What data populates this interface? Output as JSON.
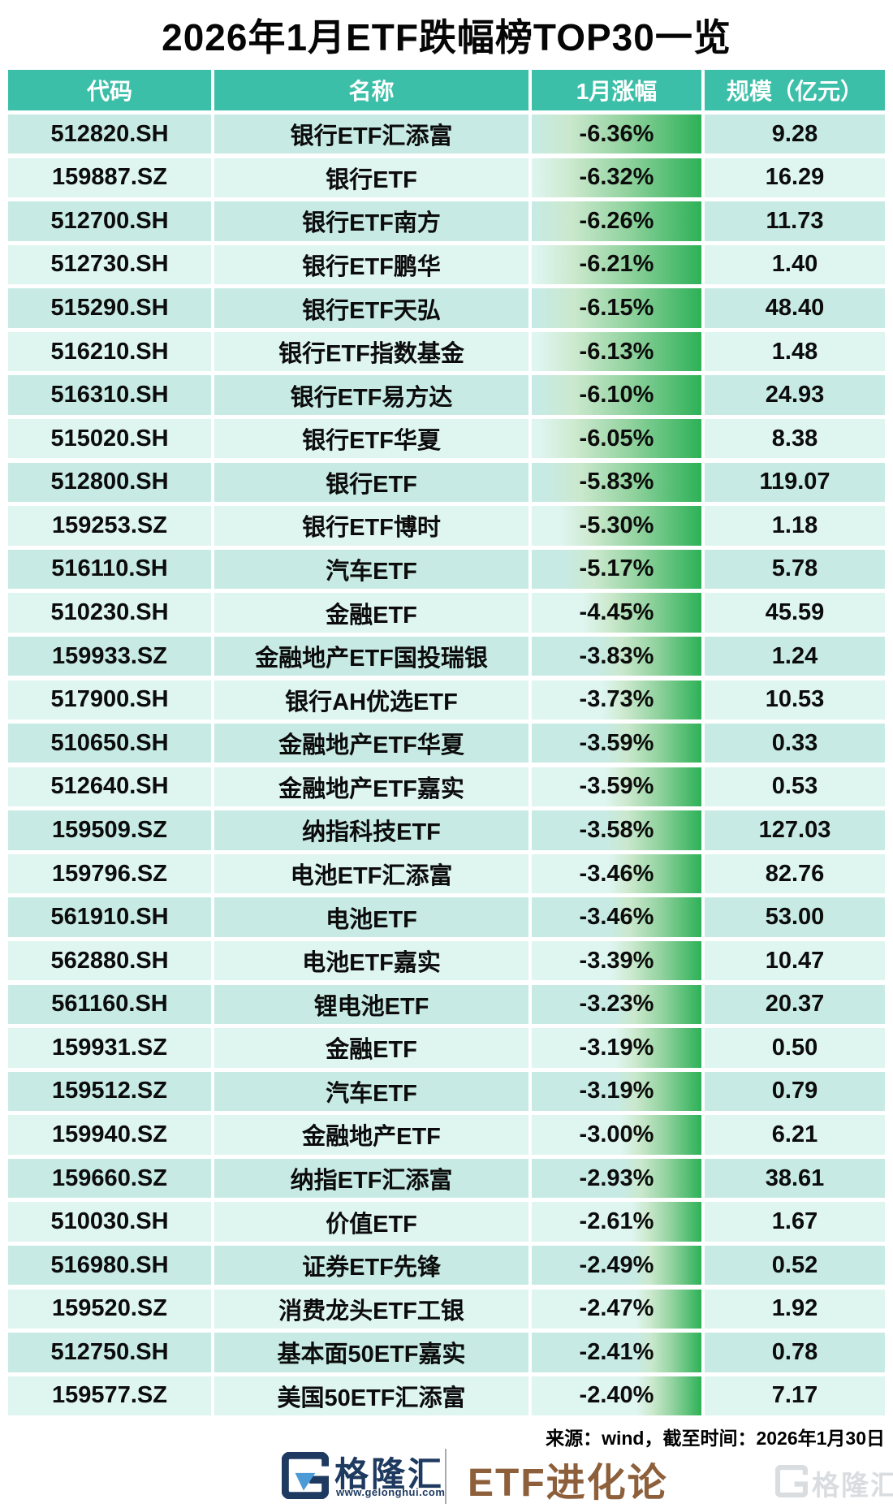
{
  "title": "2026年1月ETF跌幅榜TOP30一览",
  "chart_data": {
    "type": "table",
    "title": "2026年1月ETF跌幅榜TOP30一览",
    "columns": [
      "代码",
      "名称",
      "1月涨幅",
      "规模（亿元）"
    ],
    "bar_encoding": {
      "column": "1月涨幅",
      "max_abs_pct": 6.36,
      "bar_color_start": "#dff2df",
      "bar_color_end": "#2db157"
    },
    "rows": [
      {
        "code": "512820.SH",
        "name": "银行ETF汇添富",
        "change_pct": -6.36,
        "change_label": "-6.36%",
        "scale": "9.28"
      },
      {
        "code": "159887.SZ",
        "name": "银行ETF",
        "change_pct": -6.32,
        "change_label": "-6.32%",
        "scale": "16.29"
      },
      {
        "code": "512700.SH",
        "name": "银行ETF南方",
        "change_pct": -6.26,
        "change_label": "-6.26%",
        "scale": "11.73"
      },
      {
        "code": "512730.SH",
        "name": "银行ETF鹏华",
        "change_pct": -6.21,
        "change_label": "-6.21%",
        "scale": "1.40"
      },
      {
        "code": "515290.SH",
        "name": "银行ETF天弘",
        "change_pct": -6.15,
        "change_label": "-6.15%",
        "scale": "48.40"
      },
      {
        "code": "516210.SH",
        "name": "银行ETF指数基金",
        "change_pct": -6.13,
        "change_label": "-6.13%",
        "scale": "1.48"
      },
      {
        "code": "516310.SH",
        "name": "银行ETF易方达",
        "change_pct": -6.1,
        "change_label": "-6.10%",
        "scale": "24.93"
      },
      {
        "code": "515020.SH",
        "name": "银行ETF华夏",
        "change_pct": -6.05,
        "change_label": "-6.05%",
        "scale": "8.38"
      },
      {
        "code": "512800.SH",
        "name": "银行ETF",
        "change_pct": -5.83,
        "change_label": "-5.83%",
        "scale": "119.07"
      },
      {
        "code": "159253.SZ",
        "name": "银行ETF博时",
        "change_pct": -5.3,
        "change_label": "-5.30%",
        "scale": "1.18"
      },
      {
        "code": "516110.SH",
        "name": "汽车ETF",
        "change_pct": -5.17,
        "change_label": "-5.17%",
        "scale": "5.78"
      },
      {
        "code": "510230.SH",
        "name": "金融ETF",
        "change_pct": -4.45,
        "change_label": "-4.45%",
        "scale": "45.59"
      },
      {
        "code": "159933.SZ",
        "name": "金融地产ETF国投瑞银",
        "change_pct": -3.83,
        "change_label": "-3.83%",
        "scale": "1.24"
      },
      {
        "code": "517900.SH",
        "name": "银行AH优选ETF",
        "change_pct": -3.73,
        "change_label": "-3.73%",
        "scale": "10.53"
      },
      {
        "code": "510650.SH",
        "name": "金融地产ETF华夏",
        "change_pct": -3.59,
        "change_label": "-3.59%",
        "scale": "0.33"
      },
      {
        "code": "512640.SH",
        "name": "金融地产ETF嘉实",
        "change_pct": -3.59,
        "change_label": "-3.59%",
        "scale": "0.53"
      },
      {
        "code": "159509.SZ",
        "name": "纳指科技ETF",
        "change_pct": -3.58,
        "change_label": "-3.58%",
        "scale": "127.03"
      },
      {
        "code": "159796.SZ",
        "name": "电池ETF汇添富",
        "change_pct": -3.46,
        "change_label": "-3.46%",
        "scale": "82.76"
      },
      {
        "code": "561910.SH",
        "name": "电池ETF",
        "change_pct": -3.46,
        "change_label": "-3.46%",
        "scale": "53.00"
      },
      {
        "code": "562880.SH",
        "name": "电池ETF嘉实",
        "change_pct": -3.39,
        "change_label": "-3.39%",
        "scale": "10.47"
      },
      {
        "code": "561160.SH",
        "name": "锂电池ETF",
        "change_pct": -3.23,
        "change_label": "-3.23%",
        "scale": "20.37"
      },
      {
        "code": "159931.SZ",
        "name": "金融ETF",
        "change_pct": -3.19,
        "change_label": "-3.19%",
        "scale": "0.50"
      },
      {
        "code": "159512.SZ",
        "name": "汽车ETF",
        "change_pct": -3.19,
        "change_label": "-3.19%",
        "scale": "0.79"
      },
      {
        "code": "159940.SZ",
        "name": "金融地产ETF",
        "change_pct": -3.0,
        "change_label": "-3.00%",
        "scale": "6.21"
      },
      {
        "code": "159660.SZ",
        "name": "纳指ETF汇添富",
        "change_pct": -2.93,
        "change_label": "-2.93%",
        "scale": "38.61"
      },
      {
        "code": "510030.SH",
        "name": "价值ETF",
        "change_pct": -2.61,
        "change_label": "-2.61%",
        "scale": "1.67"
      },
      {
        "code": "516980.SH",
        "name": "证券ETF先锋",
        "change_pct": -2.49,
        "change_label": "-2.49%",
        "scale": "0.52"
      },
      {
        "code": "159520.SZ",
        "name": "消费龙头ETF工银",
        "change_pct": -2.47,
        "change_label": "-2.47%",
        "scale": "1.92"
      },
      {
        "code": "512750.SH",
        "name": "基本面50ETF嘉实",
        "change_pct": -2.41,
        "change_label": "-2.41%",
        "scale": "0.78"
      },
      {
        "code": "159577.SZ",
        "name": "美国50ETF汇添富",
        "change_pct": -2.4,
        "change_label": "-2.40%",
        "scale": "7.17"
      }
    ]
  },
  "footer": {
    "source": "来源：wind，截至时间：2026年1月30日",
    "brand_name": "格隆汇",
    "brand_url": "www.gelonghui.com",
    "column_name": "ETF进化论",
    "watermark_text": "格隆汇"
  },
  "colors": {
    "header_bg": "#3cbfa8",
    "row_odd": "#c7ebe4",
    "row_even": "#def5f0",
    "bar_end": "#2db157",
    "brand_navy": "#1e3a60",
    "brand_blue": "#4c9bd6",
    "brand_brown": "#8d5f3a",
    "watermark_gray": "#d9dcdf"
  }
}
